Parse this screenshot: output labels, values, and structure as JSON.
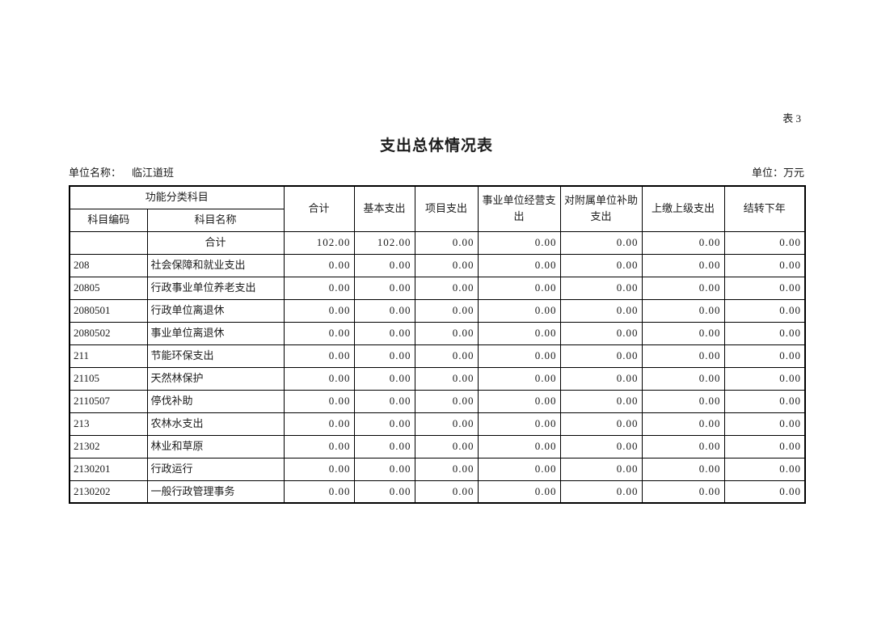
{
  "page": {
    "table_number": "表 3",
    "title": "支出总体情况表",
    "unit_name_label": "单位名称：",
    "unit_name_value": "临江道班",
    "unit_label": "单位：万元"
  },
  "table": {
    "header": {
      "group": "功能分类科目",
      "code": "科目编码",
      "name": "科目名称",
      "columns": [
        "合计",
        "基本支出",
        "项目支出",
        "事业单位经营支出",
        "对附属单位补助支出",
        "上缴上级支出",
        "结转下年"
      ]
    },
    "rows": [
      {
        "code": "",
        "name": "合计",
        "name_center": true,
        "values": [
          "102.00",
          "102.00",
          "0.00",
          "0.00",
          "0.00",
          "0.00",
          "0.00"
        ]
      },
      {
        "code": "208",
        "name": "社会保障和就业支出",
        "values": [
          "0.00",
          "0.00",
          "0.00",
          "0.00",
          "0.00",
          "0.00",
          "0.00"
        ]
      },
      {
        "code": "20805",
        "name": "行政事业单位养老支出",
        "values": [
          "0.00",
          "0.00",
          "0.00",
          "0.00",
          "0.00",
          "0.00",
          "0.00"
        ]
      },
      {
        "code": "2080501",
        "name": "行政单位离退休",
        "values": [
          "0.00",
          "0.00",
          "0.00",
          "0.00",
          "0.00",
          "0.00",
          "0.00"
        ]
      },
      {
        "code": "2080502",
        "name": "事业单位离退休",
        "values": [
          "0.00",
          "0.00",
          "0.00",
          "0.00",
          "0.00",
          "0.00",
          "0.00"
        ]
      },
      {
        "code": "211",
        "name": "节能环保支出",
        "values": [
          "0.00",
          "0.00",
          "0.00",
          "0.00",
          "0.00",
          "0.00",
          "0.00"
        ]
      },
      {
        "code": "21105",
        "name": "天然林保护",
        "values": [
          "0.00",
          "0.00",
          "0.00",
          "0.00",
          "0.00",
          "0.00",
          "0.00"
        ]
      },
      {
        "code": "2110507",
        "name": "停伐补助",
        "values": [
          "0.00",
          "0.00",
          "0.00",
          "0.00",
          "0.00",
          "0.00",
          "0.00"
        ]
      },
      {
        "code": "213",
        "name": "农林水支出",
        "values": [
          "0.00",
          "0.00",
          "0.00",
          "0.00",
          "0.00",
          "0.00",
          "0.00"
        ]
      },
      {
        "code": "21302",
        "name": "林业和草原",
        "values": [
          "0.00",
          "0.00",
          "0.00",
          "0.00",
          "0.00",
          "0.00",
          "0.00"
        ]
      },
      {
        "code": "2130201",
        "name": "行政运行",
        "values": [
          "0.00",
          "0.00",
          "0.00",
          "0.00",
          "0.00",
          "0.00",
          "0.00"
        ]
      },
      {
        "code": "2130202",
        "name": "一般行政管理事务",
        "values": [
          "0.00",
          "0.00",
          "0.00",
          "0.00",
          "0.00",
          "0.00",
          "0.00"
        ]
      }
    ]
  }
}
